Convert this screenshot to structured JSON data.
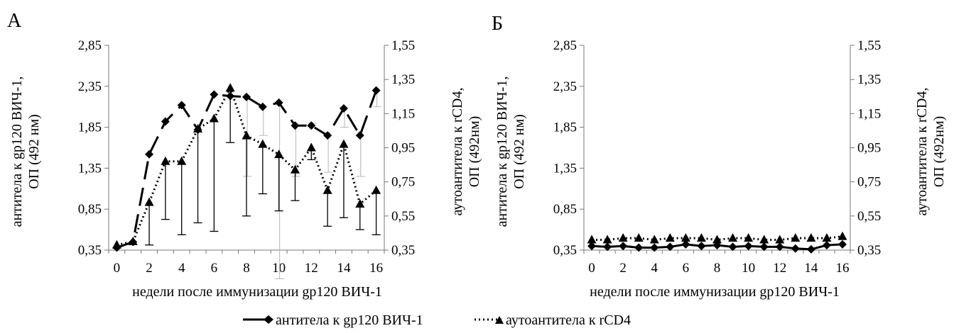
{
  "legend": {
    "series1": "антитела к gp120 ВИЧ-1",
    "series2": "аутоантитела к rCD4"
  },
  "chart_data": [
    {
      "type": "line",
      "panel_label": "А",
      "xlabel": "недели после иммунизации gp120 ВИЧ-1",
      "ylabel_left": [
        "антитела к gp120 ВИЧ-1,",
        "ОП (492 нм)"
      ],
      "ylabel_right": [
        "аутоантитела  к rCD4,",
        "ОП (492нм)"
      ],
      "x_ticks": [
        "0",
        "2",
        "4",
        "6",
        "8",
        "10",
        "12",
        "14",
        "16"
      ],
      "ylim_left": [
        0.35,
        2.85
      ],
      "y_ticks_left": [
        "0,35",
        "0,85",
        "1,35",
        "1,85",
        "2,35",
        "2,85"
      ],
      "ylim_right": [
        0.35,
        1.55
      ],
      "y_ticks_right": [
        "0,35",
        "0,55",
        "0,75",
        "0,95",
        "1,15",
        "1,35",
        "1,55"
      ],
      "x": [
        0,
        1,
        2,
        3,
        4,
        5,
        6,
        7,
        8,
        9,
        10,
        11,
        12,
        13,
        14,
        15,
        16
      ],
      "series": [
        {
          "name": "антитела к gp120 ВИЧ-1",
          "axis": "left",
          "style": "dashed",
          "marker": "diamond",
          "values": [
            0.38,
            0.45,
            1.52,
            1.92,
            2.12,
            1.82,
            2.25,
            2.23,
            2.22,
            2.1,
            2.15,
            1.87,
            1.87,
            1.75,
            2.08,
            1.75,
            2.3
          ],
          "error_low": [
            0,
            0,
            0,
            0,
            0,
            0,
            0,
            0,
            1.25,
            1.75,
            0,
            1.25,
            1.9,
            1.3,
            1.85,
            1.25,
            2.1
          ],
          "error_high": [
            0,
            0,
            0,
            0,
            0,
            0,
            0,
            0,
            2.22,
            2.1,
            2.15,
            1.87,
            1.87,
            1.75,
            2.08,
            1.75,
            2.3
          ]
        },
        {
          "name": "аутоантитела к rCD4",
          "axis": "right",
          "style": "dotted",
          "marker": "triangle",
          "values": [
            0.38,
            0.4,
            0.63,
            0.87,
            0.87,
            1.06,
            1.12,
            1.3,
            1.02,
            0.97,
            0.91,
            0.82,
            0.95,
            0.7,
            0.97,
            0.62,
            0.7
          ],
          "error_low": [
            0.38,
            0.4,
            0.38,
            0.53,
            0.44,
            0.51,
            0.46,
            0.98,
            0.55,
            0.68,
            0.58,
            0.64,
            0.88,
            0.49,
            0.54,
            0.47,
            0.44
          ],
          "error_high": [
            0.38,
            0.4,
            0.63,
            0.87,
            0.87,
            1.06,
            1.12,
            1.3,
            1.02,
            0.97,
            0.91,
            0.82,
            0.95,
            0.7,
            0.97,
            0.62,
            0.7
          ]
        }
      ]
    },
    {
      "type": "line",
      "panel_label": "Б",
      "xlabel": "недели после иммунизации gp120 ВИЧ-1",
      "ylabel_left": [
        "антитела к gp120 ВИЧ-1,",
        "ОП (492 нм)"
      ],
      "ylabel_right": [
        "аутоантитела  к rCD4,",
        "ОП (492нм)"
      ],
      "x_ticks": [
        "0",
        "2",
        "4",
        "6",
        "8",
        "10",
        "12",
        "14",
        "16"
      ],
      "ylim_left": [
        0.35,
        2.85
      ],
      "y_ticks_left": [
        "0,35",
        "0,85",
        "1,35",
        "1,85",
        "2,35",
        "2,85"
      ],
      "ylim_right": [
        0.35,
        1.55
      ],
      "y_ticks_right": [
        "0,35",
        "0,55",
        "0,75",
        "0,95",
        "1,15",
        "1,35",
        "1,55"
      ],
      "x": [
        0,
        1,
        2,
        3,
        4,
        5,
        6,
        7,
        8,
        9,
        10,
        11,
        12,
        13,
        14,
        15,
        16
      ],
      "series": [
        {
          "name": "антитела к gp120 ВИЧ-1",
          "axis": "left",
          "style": "solid",
          "marker": "diamond",
          "values": [
            0.4,
            0.39,
            0.4,
            0.38,
            0.38,
            0.39,
            0.42,
            0.4,
            0.41,
            0.39,
            0.4,
            0.39,
            0.39,
            0.37,
            0.36,
            0.41,
            0.42
          ]
        },
        {
          "name": "аутоантитела к rCD4",
          "axis": "right",
          "style": "dotted",
          "marker": "triangle",
          "values": [
            0.41,
            0.41,
            0.42,
            0.42,
            0.41,
            0.42,
            0.42,
            0.42,
            0.41,
            0.42,
            0.42,
            0.41,
            0.41,
            0.42,
            0.42,
            0.42,
            0.43
          ]
        }
      ]
    }
  ]
}
